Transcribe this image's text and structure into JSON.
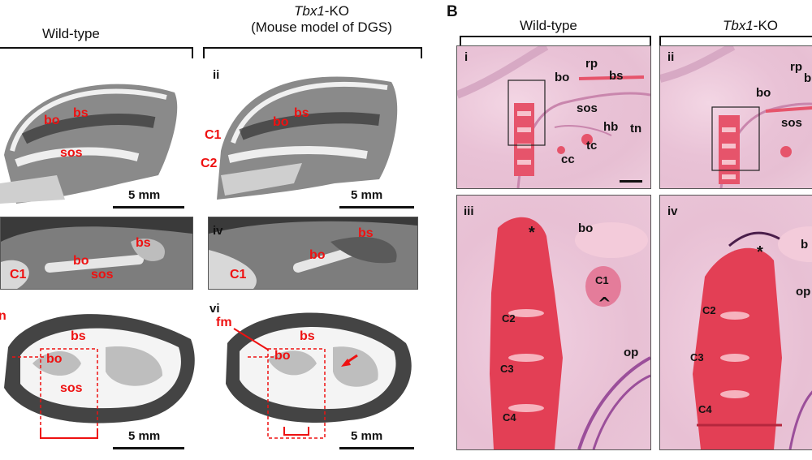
{
  "panel_b_letter": "B",
  "left": {
    "col_wt": "Wild-type",
    "col_ko_gene": "Tbx1",
    "col_ko_suffix": "-KO",
    "col_ko_sub": "(Mouse model of DGS)",
    "panels": {
      "ii": "ii",
      "iv": "iv",
      "vi": "vi"
    },
    "labels_wt_top": [
      "bo",
      "bs",
      "sos"
    ],
    "labels_ko_top": [
      "C1",
      "C2",
      "bo",
      "bs"
    ],
    "labels_wt_mid": [
      "bs",
      "bo",
      "C1",
      "sos"
    ],
    "labels_ko_mid": [
      "bs",
      "bo",
      "C1"
    ],
    "labels_wt_bot": [
      "n",
      "bs",
      "bo",
      "sos"
    ],
    "labels_ko_bot": [
      "fm",
      "bs",
      "bo"
    ],
    "scale": "5 mm"
  },
  "right": {
    "col_wt": "Wild-type",
    "col_ko_gene": "Tbx1",
    "col_ko_suffix": "-KO",
    "panels": {
      "i": "i",
      "ii": "ii",
      "iii": "iii",
      "iv": "iv"
    },
    "labels_i": [
      "bo",
      "rp",
      "bs",
      "sos",
      "hb",
      "tn",
      "tc",
      "cc"
    ],
    "labels_ii": [
      "rp",
      "b",
      "bo",
      "sos"
    ],
    "labels_iii": [
      "*",
      "bo",
      "C1",
      "C2",
      "C3",
      "C4",
      "op"
    ],
    "labels_iv": [
      "*",
      "b",
      "op",
      "C2",
      "C3",
      "C4"
    ]
  }
}
